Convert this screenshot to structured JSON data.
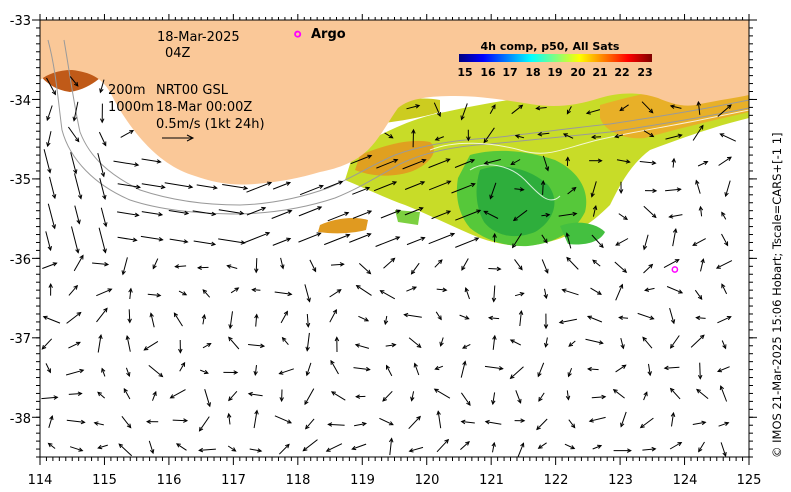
{
  "map": {
    "date": "18-Mar-2025",
    "hour": "04Z",
    "depth_shallow": "200m",
    "depth_deep": "1000m",
    "analysis": "NRT00 GSL",
    "analysis_time": "18-Mar 00:00Z",
    "velocity_scale": "0.5m/s (1kt 24h)",
    "argo_label": "Argo",
    "credit": "© IMOS 21-Mar-2025 15:06 Hobart; Tscale=CARS+[-1 1]",
    "x_ticks": [
      "114",
      "115",
      "116",
      "117",
      "118",
      "119",
      "120",
      "121",
      "122",
      "123",
      "124",
      "125"
    ],
    "y_ticks": [
      "-33",
      "-34",
      "-35",
      "-36",
      "-37",
      "-38"
    ],
    "lon_range": [
      114,
      125
    ],
    "lat_range": [
      -38.5,
      -33
    ],
    "argo_floats": [
      {
        "lon": 118.0,
        "lat": -33.18
      },
      {
        "lon": 123.85,
        "lat": -36.14
      }
    ],
    "colors": {
      "land": "#fac898",
      "arrow": "#000000",
      "contour": "#9a9a9a",
      "argo": "#ff00ff"
    }
  },
  "colorbar": {
    "title": "4h comp, p50, All Sats",
    "ticks": [
      "15",
      "16",
      "17",
      "18",
      "19",
      "20",
      "21",
      "22",
      "23"
    ],
    "range": [
      14.5,
      23.5
    ],
    "colors": [
      "#00007f",
      "#0000ff",
      "#0080ff",
      "#00ffff",
      "#80ff80",
      "#ffff00",
      "#ff8000",
      "#ff0000",
      "#7f0000"
    ]
  }
}
